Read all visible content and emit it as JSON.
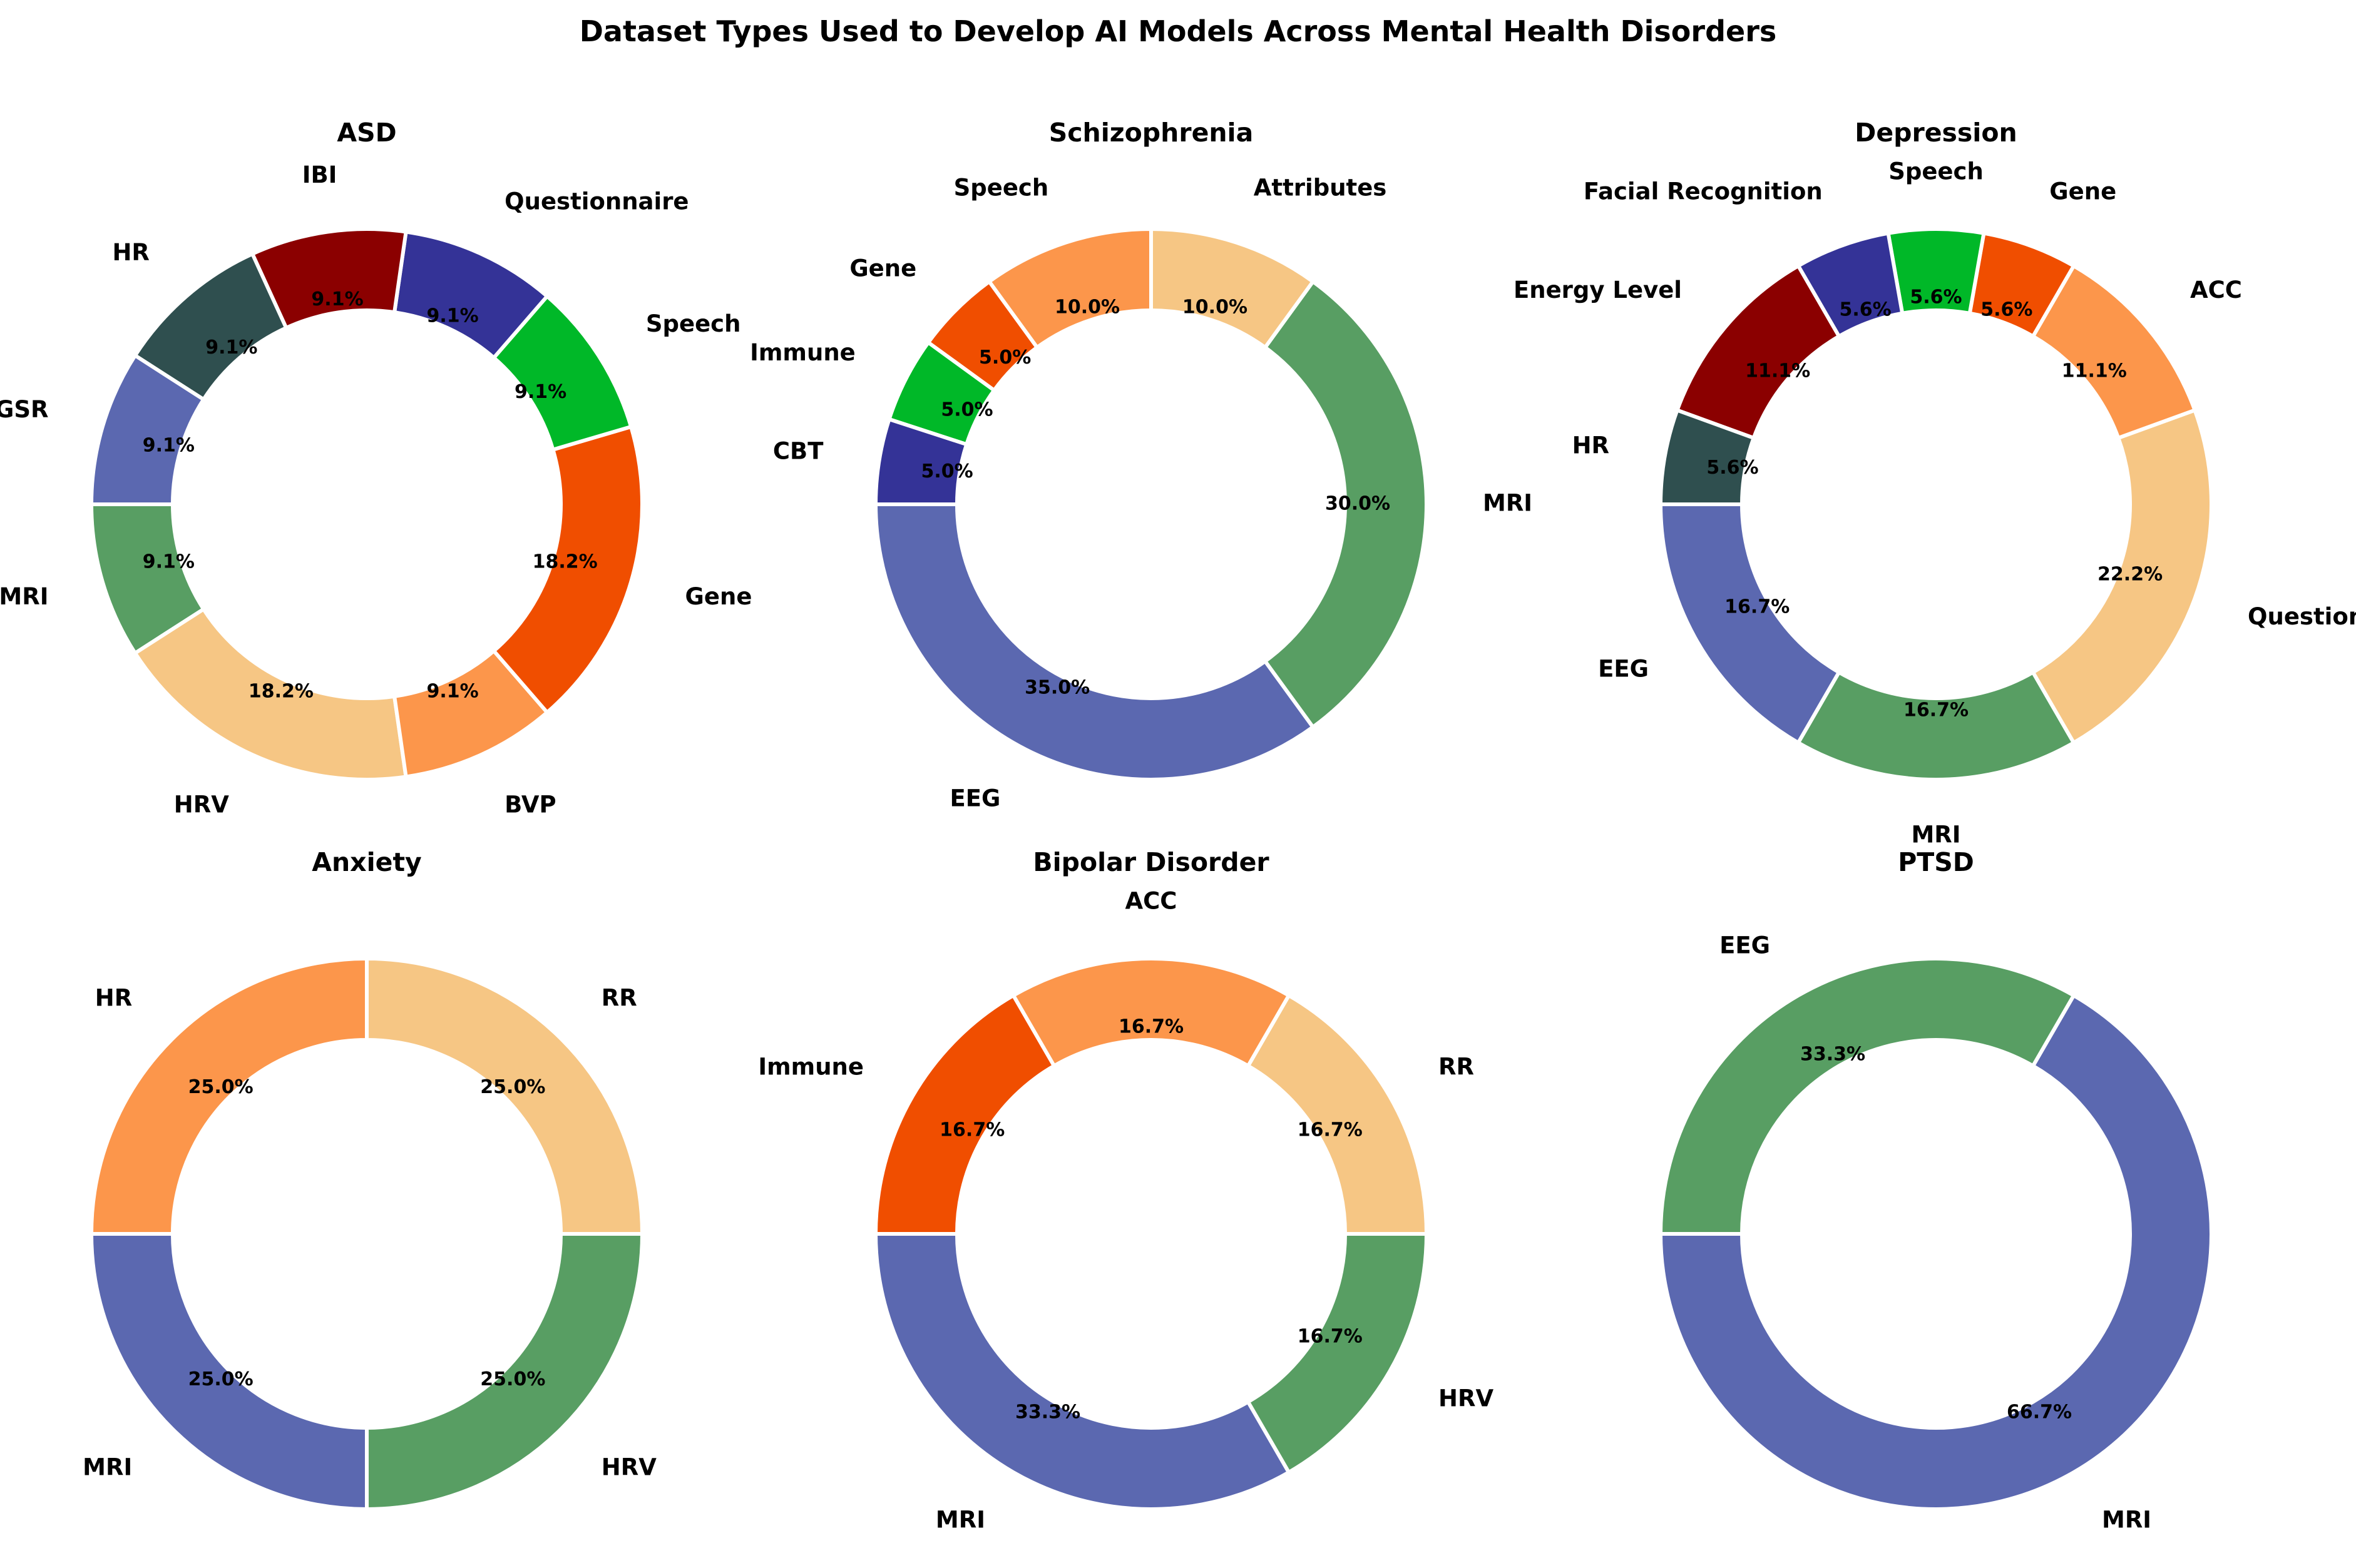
{
  "colors": {
    "blue": "#5b68b0",
    "green": "#589e63",
    "light_orange": "#f6c684",
    "orange": "#fc964b",
    "red_orange": "#f04e00",
    "bright_green": "#00b828",
    "navy": "#343397",
    "dark_red": "#8b0000",
    "dark_slate": "#2f4f4f"
  },
  "chart_data": {
    "title": "Dataset Types Used to Develop AI Models Across Mental Health Disorders",
    "type": "pie",
    "style": "donut",
    "charts": [
      {
        "title": "ASD",
        "slices": [
          {
            "label": "MRI",
            "percent": "9.1%",
            "value": 1,
            "color": "#589e63"
          },
          {
            "label": "HRV",
            "percent": "18.2%",
            "value": 2,
            "color": "#f6c684"
          },
          {
            "label": "BVP",
            "percent": "9.1%",
            "value": 1,
            "color": "#fc964b"
          },
          {
            "label": "Gene",
            "percent": "18.2%",
            "value": 2,
            "color": "#f04e00"
          },
          {
            "label": "Speech",
            "percent": "9.1%",
            "value": 1,
            "color": "#00b828"
          },
          {
            "label": "Questionnaire",
            "percent": "9.1%",
            "value": 1,
            "color": "#343397"
          },
          {
            "label": "IBI",
            "percent": "9.1%",
            "value": 1,
            "color": "#8b0000"
          },
          {
            "label": "HR",
            "percent": "9.1%",
            "value": 1,
            "color": "#2f4f4f"
          },
          {
            "label": "GSR",
            "percent": "9.1%",
            "value": 1,
            "color": "#5b68b0"
          }
        ]
      },
      {
        "title": "Schizophrenia",
        "slices": [
          {
            "label": "EEG",
            "percent": "35.0%",
            "value": 7,
            "color": "#5b68b0"
          },
          {
            "label": "MRI",
            "percent": "30.0%",
            "value": 6,
            "color": "#589e63"
          },
          {
            "label": "Attributes",
            "percent": "10.0%",
            "value": 2,
            "color": "#f6c684"
          },
          {
            "label": "Speech",
            "percent": "10.0%",
            "value": 2,
            "color": "#fc964b"
          },
          {
            "label": "Gene",
            "percent": "5.0%",
            "value": 1,
            "color": "#f04e00"
          },
          {
            "label": "Immune",
            "percent": "5.0%",
            "value": 1,
            "color": "#00b828"
          },
          {
            "label": "CBT",
            "percent": "5.0%",
            "value": 1,
            "color": "#343397"
          }
        ]
      },
      {
        "title": "Depression",
        "slices": [
          {
            "label": "EEG",
            "percent": "16.7%",
            "value": 3,
            "color": "#5b68b0"
          },
          {
            "label": "MRI",
            "percent": "16.7%",
            "value": 3,
            "color": "#589e63"
          },
          {
            "label": "Questionnaire Score",
            "percent": "22.2%",
            "value": 4,
            "color": "#f6c684"
          },
          {
            "label": "ACC",
            "percent": "11.1%",
            "value": 2,
            "color": "#fc964b"
          },
          {
            "label": "Gene",
            "percent": "5.6%",
            "value": 1,
            "color": "#f04e00"
          },
          {
            "label": "Speech",
            "percent": "5.6%",
            "value": 1,
            "color": "#00b828"
          },
          {
            "label": "Facial Recognition",
            "percent": "5.6%",
            "value": 1,
            "color": "#343397"
          },
          {
            "label": "Energy Level",
            "percent": "11.1%",
            "value": 2,
            "color": "#8b0000"
          },
          {
            "label": "HR",
            "percent": "5.6%",
            "value": 1,
            "color": "#2f4f4f"
          }
        ]
      },
      {
        "title": "Anxiety",
        "slices": [
          {
            "label": "MRI",
            "percent": "25.0%",
            "value": 1,
            "color": "#5b68b0"
          },
          {
            "label": "HRV",
            "percent": "25.0%",
            "value": 1,
            "color": "#589e63"
          },
          {
            "label": "RR",
            "percent": "25.0%",
            "value": 1,
            "color": "#f6c684"
          },
          {
            "label": "HR",
            "percent": "25.0%",
            "value": 1,
            "color": "#fc964b"
          }
        ]
      },
      {
        "title": "Bipolar Disorder",
        "slices": [
          {
            "label": "MRI",
            "percent": "33.3%",
            "value": 2,
            "color": "#5b68b0"
          },
          {
            "label": "HRV",
            "percent": "16.7%",
            "value": 1,
            "color": "#589e63"
          },
          {
            "label": "RR",
            "percent": "16.7%",
            "value": 1,
            "color": "#f6c684"
          },
          {
            "label": "ACC",
            "percent": "16.7%",
            "value": 1,
            "color": "#fc964b"
          },
          {
            "label": "Immune",
            "percent": "16.7%",
            "value": 1,
            "color": "#f04e00"
          }
        ]
      },
      {
        "title": "PTSD",
        "slices": [
          {
            "label": "MRI",
            "percent": "66.7%",
            "value": 2,
            "color": "#5b68b0"
          },
          {
            "label": "EEG",
            "percent": "33.3%",
            "value": 1,
            "color": "#589e63"
          }
        ]
      }
    ]
  }
}
